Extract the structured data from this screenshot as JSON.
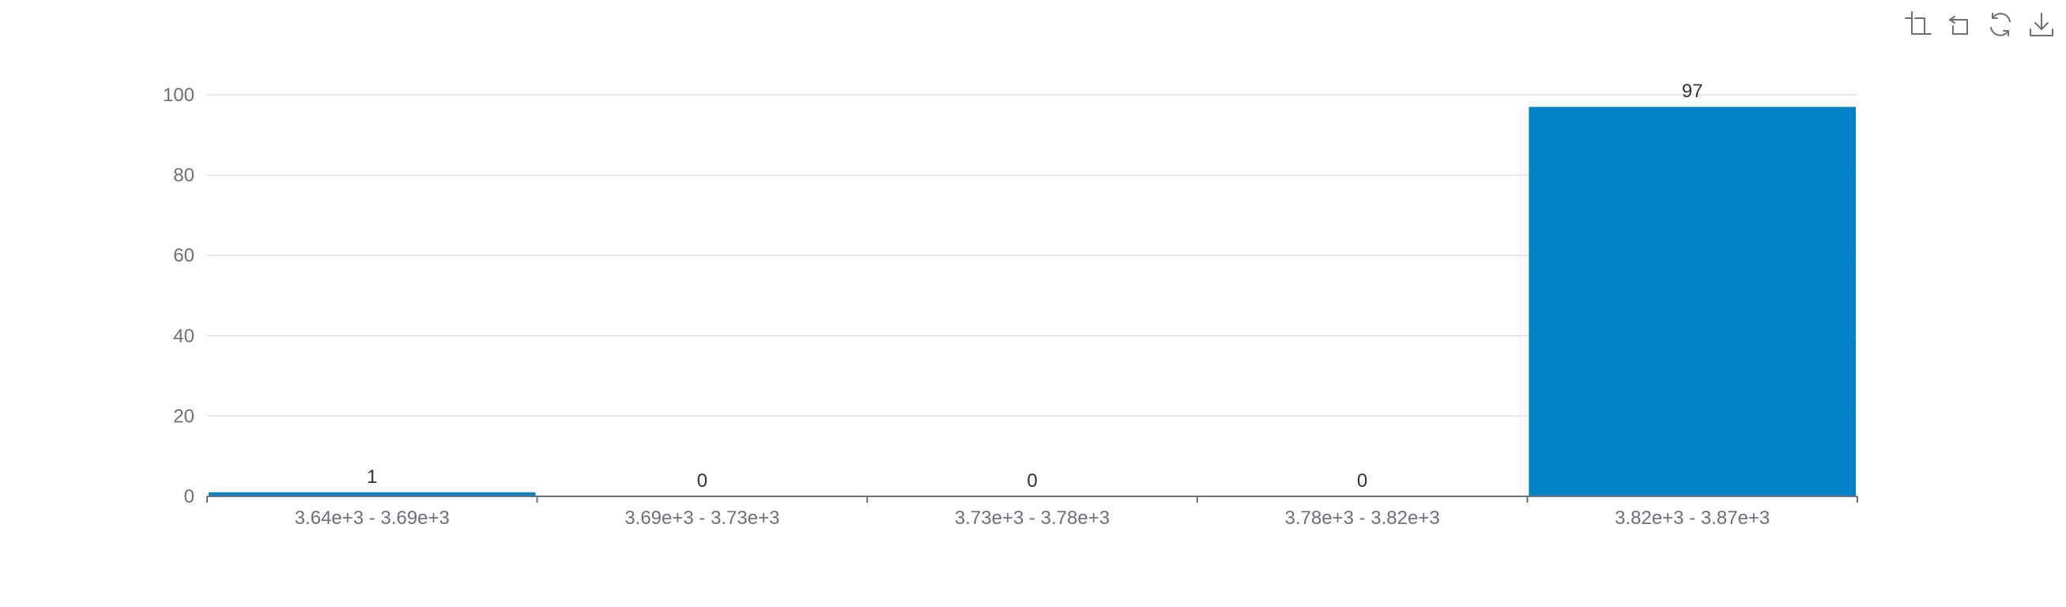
{
  "toolbar": {
    "icons": [
      "crop-icon",
      "undo-icon",
      "refresh-icon",
      "download-icon"
    ]
  },
  "colors": {
    "bar": "#0382C8",
    "grid": "#e0e0e0",
    "axis": "#6e7079",
    "axis_label": "#6e7079",
    "data_label": "#333333"
  },
  "chart_data": {
    "type": "bar",
    "categories": [
      "3.64e+3 - 3.69e+3",
      "3.69e+3 - 3.73e+3",
      "3.73e+3 - 3.78e+3",
      "3.78e+3 - 3.82e+3",
      "3.82e+3 - 3.87e+3"
    ],
    "values": [
      1,
      0,
      0,
      0,
      97
    ],
    "title": "",
    "xlabel": "",
    "ylabel": "",
    "ylim": [
      0,
      100
    ],
    "yticks": [
      0,
      20,
      40,
      60,
      80,
      100
    ],
    "grid": true,
    "legend": "none",
    "data_labels": true
  }
}
